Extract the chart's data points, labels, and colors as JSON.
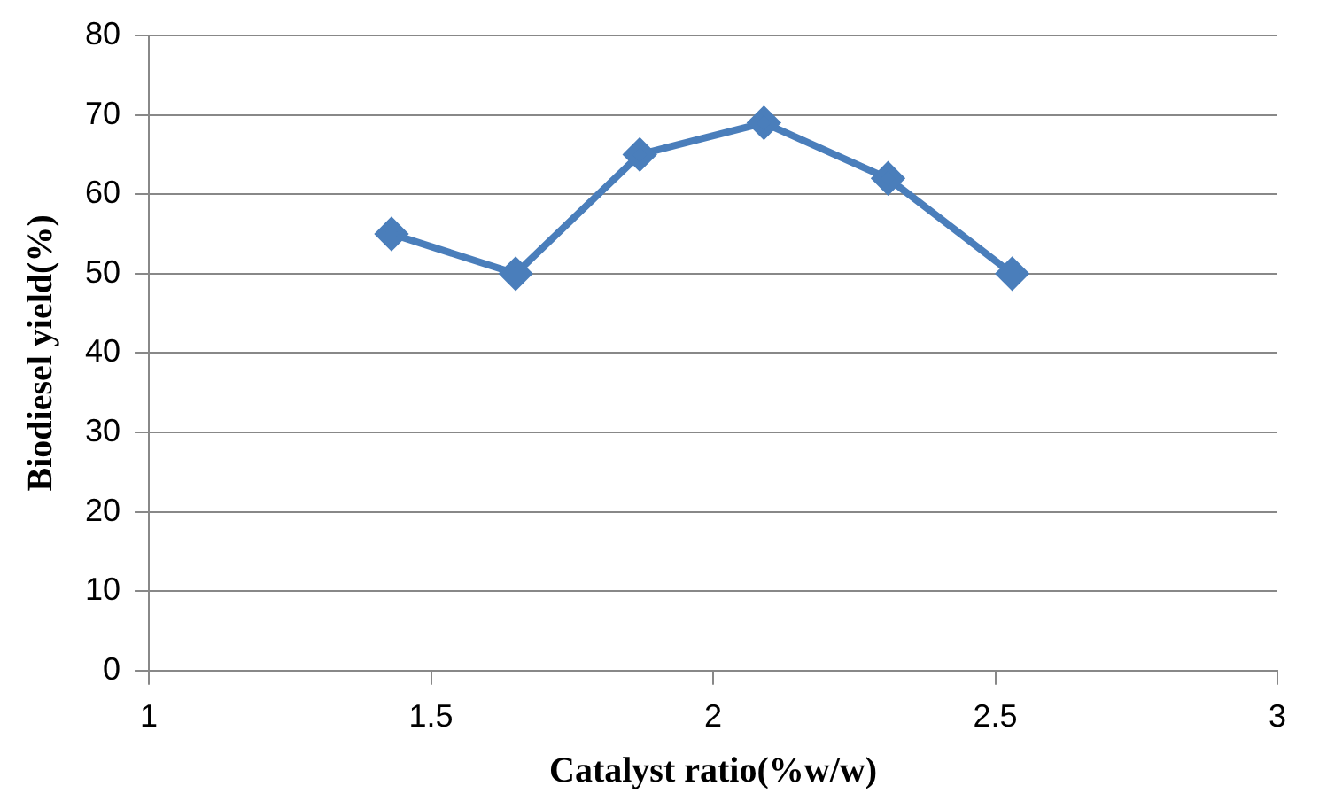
{
  "chart_data": {
    "type": "line",
    "xlabel": "Catalyst ratio(%w/w)",
    "ylabel": "Biodiesel yield(%)",
    "x": [
      1.43,
      1.65,
      1.87,
      2.09,
      2.31,
      2.53
    ],
    "series": [
      {
        "color": "#4a7ebb",
        "values": [
          55,
          50,
          65,
          69,
          62,
          50
        ]
      }
    ],
    "xlim": [
      1,
      3
    ],
    "xticks": [
      1,
      1.5,
      2,
      2.5,
      3
    ],
    "ylim": [
      0,
      80
    ],
    "yticks": [
      0,
      10,
      20,
      30,
      40,
      50,
      60,
      70,
      80
    ],
    "grid": "y",
    "legend": false,
    "marker": "diamond",
    "line_style": "solid"
  }
}
